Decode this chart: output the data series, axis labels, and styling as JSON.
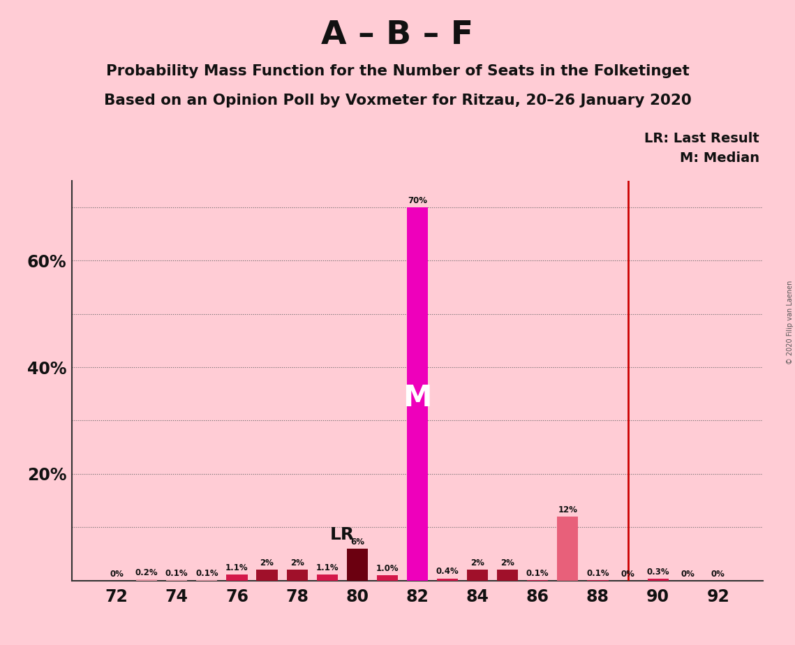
{
  "title_main": "A – B – F",
  "title_sub1": "Probability Mass Function for the Number of Seats in the Folketinget",
  "title_sub2": "Based on an Opinion Poll by Voxmeter for Ritzau, 20–26 January 2020",
  "seats": [
    72,
    73,
    74,
    75,
    76,
    77,
    78,
    79,
    80,
    81,
    82,
    83,
    84,
    85,
    86,
    87,
    88,
    89,
    90,
    91,
    92
  ],
  "values": [
    0.0,
    0.2,
    0.1,
    0.1,
    1.1,
    2.0,
    2.0,
    1.1,
    6.0,
    1.0,
    70.0,
    0.4,
    2.0,
    2.0,
    0.1,
    12.0,
    0.1,
    0.0,
    0.3,
    0.0,
    0.0
  ],
  "bar_color_map": {
    "72": "#F4A0B0",
    "73": "#F4A0B0",
    "74": "#F4A0B0",
    "75": "#F4A0B0",
    "76": "#D4184A",
    "77": "#A0102A",
    "78": "#A0102A",
    "79": "#D4184A",
    "80": "#6B0010",
    "81": "#D4184A",
    "82": "#EE00BB",
    "83": "#D4184A",
    "84": "#A0102A",
    "85": "#A0102A",
    "86": "#D4184A",
    "87": "#E8607A",
    "88": "#D4184A",
    "89": "#D4184A",
    "90": "#D4184A",
    "91": "#D4184A",
    "92": "#D4184A"
  },
  "labels": [
    "0%",
    "0.2%",
    "0.1%",
    "0.1%",
    "1.1%",
    "2%",
    "2%",
    "1.1%",
    "6%",
    "1.0%",
    "70%",
    "0.4%",
    "2%",
    "2%",
    "0.1%",
    "12%",
    "0.1%",
    "0%",
    "0.3%",
    "0%",
    "0%"
  ],
  "median_seat": 82,
  "last_result_seat": 89,
  "background_color": "#FFCCD5",
  "plot_bg_color": "#FFCCD5",
  "bar_width": 0.7,
  "ylim_max": 75,
  "grid_yticks": [
    10,
    20,
    30,
    40,
    50,
    60,
    70
  ],
  "ylabel_ticks": [
    20,
    40,
    60
  ],
  "ylabel_labels": [
    "20%",
    "40%",
    "60%"
  ],
  "xtick_positions": [
    72,
    74,
    76,
    78,
    80,
    82,
    84,
    86,
    88,
    90,
    92
  ],
  "xtick_labels": [
    "72",
    "74",
    "76",
    "78",
    "80",
    "82",
    "84",
    "86",
    "88",
    "90",
    "92"
  ],
  "grid_color": "#666666",
  "lr_line_color": "#CC0000",
  "median_text_color": "#FFFFFF",
  "median_text_fontsize": 30,
  "copyright_text": "© 2020 Filip van Laenen",
  "lr_label_seat": 80,
  "lr_label_text": "LR"
}
